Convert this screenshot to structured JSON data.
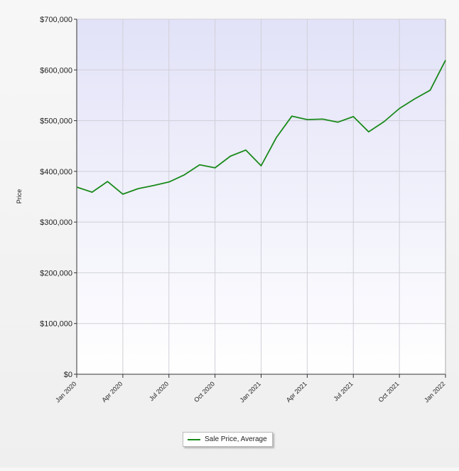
{
  "chart_data": {
    "type": "line",
    "ylabel": "Price",
    "ylim": [
      0,
      700000
    ],
    "y_ticks": [
      "$0",
      "$100,000",
      "$200,000",
      "$300,000",
      "$400,000",
      "$500,000",
      "$600,000",
      "$700,000"
    ],
    "y_tick_values": [
      0,
      100000,
      200000,
      300000,
      400000,
      500000,
      600000,
      700000
    ],
    "x_ticks": [
      "Jan 2020",
      "Apr 2020",
      "Jul 2020",
      "Oct 2020",
      "Jan 2021",
      "Apr 2021",
      "Jul 2021",
      "Oct 2021",
      "Jan 2022"
    ],
    "x": [
      "2020-01",
      "2020-02",
      "2020-03",
      "2020-04",
      "2020-05",
      "2020-06",
      "2020-07",
      "2020-08",
      "2020-09",
      "2020-10",
      "2020-11",
      "2020-12",
      "2021-01",
      "2021-02",
      "2021-03",
      "2021-04",
      "2021-05",
      "2021-06",
      "2021-07",
      "2021-08",
      "2021-09",
      "2021-10",
      "2021-11",
      "2021-12",
      "2022-01"
    ],
    "series": [
      {
        "name": "Sale Price, Average",
        "color": "#1a8a1a",
        "values": [
          369000,
          359000,
          380000,
          355000,
          366000,
          372000,
          379000,
          393000,
          413000,
          407000,
          430000,
          442000,
          411000,
          467000,
          509000,
          502000,
          503000,
          497000,
          508000,
          478000,
          498000,
          524000,
          543000,
          560000,
          619000
        ]
      }
    ],
    "grid": true,
    "legend_position": "bottom-center",
    "plot_background": "#e6e6fa"
  },
  "legend": {
    "label": "Sale Price, Average"
  }
}
